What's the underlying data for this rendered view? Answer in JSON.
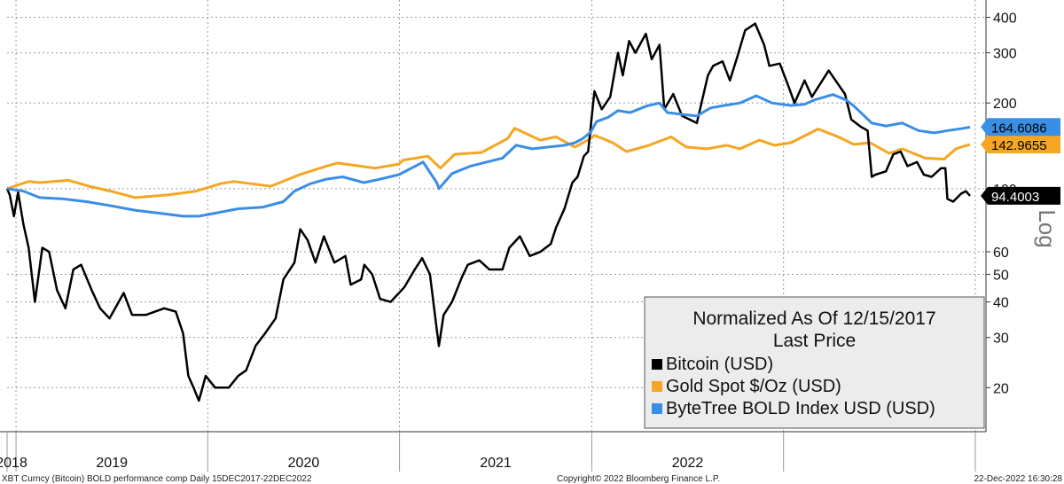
{
  "chart_data": {
    "type": "line",
    "title": "",
    "xlabel": "",
    "ylabel": "",
    "yscale": "log",
    "scale_label": "Log",
    "ylim": [
      14,
      460
    ],
    "yticks": [
      20,
      30,
      40,
      50,
      60,
      100,
      200,
      300,
      400
    ],
    "year_labels": [
      "2018",
      "2019",
      "2020",
      "2021",
      "2022"
    ],
    "x_range": [
      "2017-12-15",
      "2022-12-22"
    ],
    "grid": true,
    "legend": {
      "placement": "bottom-right",
      "header_line1": "Normalized As Of 12/15/2017",
      "header_line2": "Last Price"
    },
    "series": [
      {
        "name": "Bitcoin (USD)",
        "color": "#000000",
        "last_value_label": "94.4003",
        "points": [
          [
            "2017-12-15",
            100
          ],
          [
            "2017-12-20",
            95
          ],
          [
            "2017-12-28",
            80
          ],
          [
            "2018-01-05",
            97
          ],
          [
            "2018-01-15",
            75
          ],
          [
            "2018-01-25",
            62
          ],
          [
            "2018-02-06",
            40
          ],
          [
            "2018-02-20",
            62
          ],
          [
            "2018-03-05",
            60
          ],
          [
            "2018-03-20",
            44
          ],
          [
            "2018-04-05",
            38
          ],
          [
            "2018-04-20",
            52
          ],
          [
            "2018-05-05",
            54
          ],
          [
            "2018-05-25",
            44
          ],
          [
            "2018-06-10",
            38
          ],
          [
            "2018-06-28",
            35
          ],
          [
            "2018-07-25",
            43
          ],
          [
            "2018-08-10",
            36
          ],
          [
            "2018-09-05",
            36
          ],
          [
            "2018-10-10",
            38
          ],
          [
            "2018-11-01",
            37
          ],
          [
            "2018-11-15",
            31
          ],
          [
            "2018-11-25",
            22
          ],
          [
            "2018-12-05",
            20
          ],
          [
            "2018-12-15",
            18
          ],
          [
            "2018-12-28",
            22
          ],
          [
            "2019-01-15",
            20
          ],
          [
            "2019-02-10",
            20
          ],
          [
            "2019-02-28",
            22
          ],
          [
            "2019-03-15",
            23
          ],
          [
            "2019-04-02",
            28
          ],
          [
            "2019-04-20",
            31
          ],
          [
            "2019-05-10",
            35
          ],
          [
            "2019-05-25",
            48
          ],
          [
            "2019-06-15",
            55
          ],
          [
            "2019-06-26",
            72
          ],
          [
            "2019-07-10",
            66
          ],
          [
            "2019-07-25",
            55
          ],
          [
            "2019-08-10",
            68
          ],
          [
            "2019-08-30",
            55
          ],
          [
            "2019-09-20",
            58
          ],
          [
            "2019-09-30",
            46
          ],
          [
            "2019-10-20",
            48
          ],
          [
            "2019-10-26",
            54
          ],
          [
            "2019-11-10",
            50
          ],
          [
            "2019-11-25",
            41
          ],
          [
            "2019-12-15",
            40
          ],
          [
            "2020-01-10",
            45
          ],
          [
            "2020-01-30",
            52
          ],
          [
            "2020-02-13",
            57
          ],
          [
            "2020-02-28",
            50
          ],
          [
            "2020-03-12",
            32
          ],
          [
            "2020-03-16",
            28
          ],
          [
            "2020-03-25",
            36
          ],
          [
            "2020-04-10",
            40
          ],
          [
            "2020-04-29",
            49
          ],
          [
            "2020-05-10",
            54
          ],
          [
            "2020-06-01",
            56
          ],
          [
            "2020-06-20",
            52
          ],
          [
            "2020-07-15",
            52
          ],
          [
            "2020-07-28",
            62
          ],
          [
            "2020-08-17",
            68
          ],
          [
            "2020-09-05",
            58
          ],
          [
            "2020-09-25",
            60
          ],
          [
            "2020-10-15",
            64
          ],
          [
            "2020-10-25",
            73
          ],
          [
            "2020-11-10",
            85
          ],
          [
            "2020-11-25",
            105
          ],
          [
            "2020-12-05",
            110
          ],
          [
            "2020-12-17",
            130
          ],
          [
            "2020-12-25",
            135
          ],
          [
            "2021-01-06",
            220
          ],
          [
            "2021-01-20",
            190
          ],
          [
            "2021-02-05",
            210
          ],
          [
            "2021-02-20",
            300
          ],
          [
            "2021-03-01",
            250
          ],
          [
            "2021-03-13",
            330
          ],
          [
            "2021-03-25",
            300
          ],
          [
            "2021-04-14",
            350
          ],
          [
            "2021-04-25",
            285
          ],
          [
            "2021-05-10",
            320
          ],
          [
            "2021-05-19",
            190
          ],
          [
            "2021-06-05",
            215
          ],
          [
            "2021-06-22",
            180
          ],
          [
            "2021-07-20",
            170
          ],
          [
            "2021-08-10",
            250
          ],
          [
            "2021-08-20",
            270
          ],
          [
            "2021-09-07",
            280
          ],
          [
            "2021-09-21",
            240
          ],
          [
            "2021-10-05",
            290
          ],
          [
            "2021-10-20",
            360
          ],
          [
            "2021-11-08",
            380
          ],
          [
            "2021-11-25",
            320
          ],
          [
            "2021-12-05",
            270
          ],
          [
            "2021-12-25",
            275
          ],
          [
            "2022-01-10",
            230
          ],
          [
            "2022-01-22",
            200
          ],
          [
            "2022-02-10",
            240
          ],
          [
            "2022-02-24",
            210
          ],
          [
            "2022-03-28",
            260
          ],
          [
            "2022-04-10",
            240
          ],
          [
            "2022-04-28",
            215
          ],
          [
            "2022-05-10",
            175
          ],
          [
            "2022-05-28",
            165
          ],
          [
            "2022-06-10",
            160
          ],
          [
            "2022-06-18",
            110
          ],
          [
            "2022-06-25",
            112
          ],
          [
            "2022-07-15",
            115
          ],
          [
            "2022-07-29",
            132
          ],
          [
            "2022-08-12",
            135
          ],
          [
            "2022-08-25",
            120
          ],
          [
            "2022-09-12",
            124
          ],
          [
            "2022-09-25",
            112
          ],
          [
            "2022-10-10",
            110
          ],
          [
            "2022-10-28",
            118
          ],
          [
            "2022-11-05",
            118
          ],
          [
            "2022-11-09",
            92
          ],
          [
            "2022-11-20",
            90
          ],
          [
            "2022-12-05",
            96
          ],
          [
            "2022-12-14",
            98
          ],
          [
            "2022-12-22",
            94.4
          ]
        ]
      },
      {
        "name": "Gold Spot $/Oz (USD)",
        "color": "#f5a623",
        "last_value_label": "142.9655",
        "points": [
          [
            "2017-12-15",
            100
          ],
          [
            "2018-01-25",
            106
          ],
          [
            "2018-02-15",
            105
          ],
          [
            "2018-04-11",
            107
          ],
          [
            "2018-05-20",
            102
          ],
          [
            "2018-06-30",
            98
          ],
          [
            "2018-08-16",
            93
          ],
          [
            "2018-10-15",
            95
          ],
          [
            "2018-12-10",
            98
          ],
          [
            "2019-01-25",
            104
          ],
          [
            "2019-02-20",
            106
          ],
          [
            "2019-05-01",
            102
          ],
          [
            "2019-06-25",
            112
          ],
          [
            "2019-08-15",
            120
          ],
          [
            "2019-09-05",
            123
          ],
          [
            "2019-11-15",
            118
          ],
          [
            "2019-12-31",
            122
          ],
          [
            "2020-01-08",
            126
          ],
          [
            "2020-02-24",
            130
          ],
          [
            "2020-03-19",
            118
          ],
          [
            "2020-04-15",
            132
          ],
          [
            "2020-06-05",
            134
          ],
          [
            "2020-07-25",
            150
          ],
          [
            "2020-08-07",
            163
          ],
          [
            "2020-09-25",
            148
          ],
          [
            "2020-10-25",
            152
          ],
          [
            "2020-11-30",
            140
          ],
          [
            "2020-12-30",
            150
          ],
          [
            "2021-01-06",
            154
          ],
          [
            "2021-02-10",
            145
          ],
          [
            "2021-03-08",
            135
          ],
          [
            "2021-04-20",
            142
          ],
          [
            "2021-06-01",
            152
          ],
          [
            "2021-06-30",
            140
          ],
          [
            "2021-08-09",
            138
          ],
          [
            "2021-09-15",
            142
          ],
          [
            "2021-10-10",
            138
          ],
          [
            "2021-11-16",
            148
          ],
          [
            "2021-12-15",
            142
          ],
          [
            "2022-01-15",
            145
          ],
          [
            "2022-03-08",
            162
          ],
          [
            "2022-04-15",
            152
          ],
          [
            "2022-05-15",
            143
          ],
          [
            "2022-06-15",
            145
          ],
          [
            "2022-07-21",
            133
          ],
          [
            "2022-08-15",
            138
          ],
          [
            "2022-09-28",
            128
          ],
          [
            "2022-11-03",
            127
          ],
          [
            "2022-11-25",
            138
          ],
          [
            "2022-12-10",
            141
          ],
          [
            "2022-12-22",
            142.97
          ]
        ]
      },
      {
        "name": "ByteTree BOLD Index USD (USD)",
        "color": "#3a8ee6",
        "last_value_label": "164.6086",
        "points": [
          [
            "2017-12-15",
            100
          ],
          [
            "2018-01-15",
            98
          ],
          [
            "2018-02-15",
            93
          ],
          [
            "2018-04-01",
            92
          ],
          [
            "2018-05-15",
            90
          ],
          [
            "2018-07-01",
            87
          ],
          [
            "2018-08-15",
            84
          ],
          [
            "2018-10-01",
            82
          ],
          [
            "2018-11-15",
            80
          ],
          [
            "2018-12-15",
            80
          ],
          [
            "2019-01-15",
            82
          ],
          [
            "2019-02-28",
            85
          ],
          [
            "2019-04-15",
            86
          ],
          [
            "2019-05-25",
            90
          ],
          [
            "2019-06-15",
            98
          ],
          [
            "2019-07-15",
            104
          ],
          [
            "2019-08-15",
            108
          ],
          [
            "2019-09-15",
            110
          ],
          [
            "2019-10-25",
            105
          ],
          [
            "2019-11-25",
            108
          ],
          [
            "2019-12-31",
            112
          ],
          [
            "2020-01-31",
            120
          ],
          [
            "2020-02-15",
            124
          ],
          [
            "2020-03-12",
            105
          ],
          [
            "2020-03-16",
            100
          ],
          [
            "2020-04-10",
            113
          ],
          [
            "2020-05-15",
            120
          ],
          [
            "2020-06-15",
            124
          ],
          [
            "2020-07-15",
            128
          ],
          [
            "2020-08-10",
            142
          ],
          [
            "2020-09-10",
            138
          ],
          [
            "2020-10-10",
            140
          ],
          [
            "2020-11-10",
            142
          ],
          [
            "2020-11-30",
            145
          ],
          [
            "2020-12-15",
            150
          ],
          [
            "2020-12-30",
            158
          ],
          [
            "2021-01-10",
            172
          ],
          [
            "2021-02-01",
            178
          ],
          [
            "2021-02-20",
            188
          ],
          [
            "2021-03-15",
            185
          ],
          [
            "2021-04-15",
            195
          ],
          [
            "2021-05-10",
            200
          ],
          [
            "2021-05-25",
            185
          ],
          [
            "2021-06-25",
            182
          ],
          [
            "2021-07-20",
            180
          ],
          [
            "2021-08-15",
            192
          ],
          [
            "2021-09-10",
            196
          ],
          [
            "2021-10-10",
            200
          ],
          [
            "2021-11-10",
            212
          ],
          [
            "2021-12-10",
            200
          ],
          [
            "2022-01-15",
            196
          ],
          [
            "2022-02-10",
            198
          ],
          [
            "2022-03-01",
            205
          ],
          [
            "2022-04-05",
            214
          ],
          [
            "2022-04-30",
            205
          ],
          [
            "2022-05-15",
            195
          ],
          [
            "2022-06-18",
            170
          ],
          [
            "2022-07-15",
            166
          ],
          [
            "2022-08-15",
            170
          ],
          [
            "2022-09-15",
            160
          ],
          [
            "2022-10-15",
            157
          ],
          [
            "2022-11-10",
            160
          ],
          [
            "2022-12-10",
            163
          ],
          [
            "2022-12-22",
            164.61
          ]
        ]
      }
    ]
  },
  "footer": {
    "left": "XBT Curncy (Bitcoin) BOLD performance comp  Daily 15DEC2017-22DEC2022",
    "center": "Copyright© 2022 Bloomberg Finance L.P.",
    "right": "22-Dec-2022 16:30:28"
  }
}
